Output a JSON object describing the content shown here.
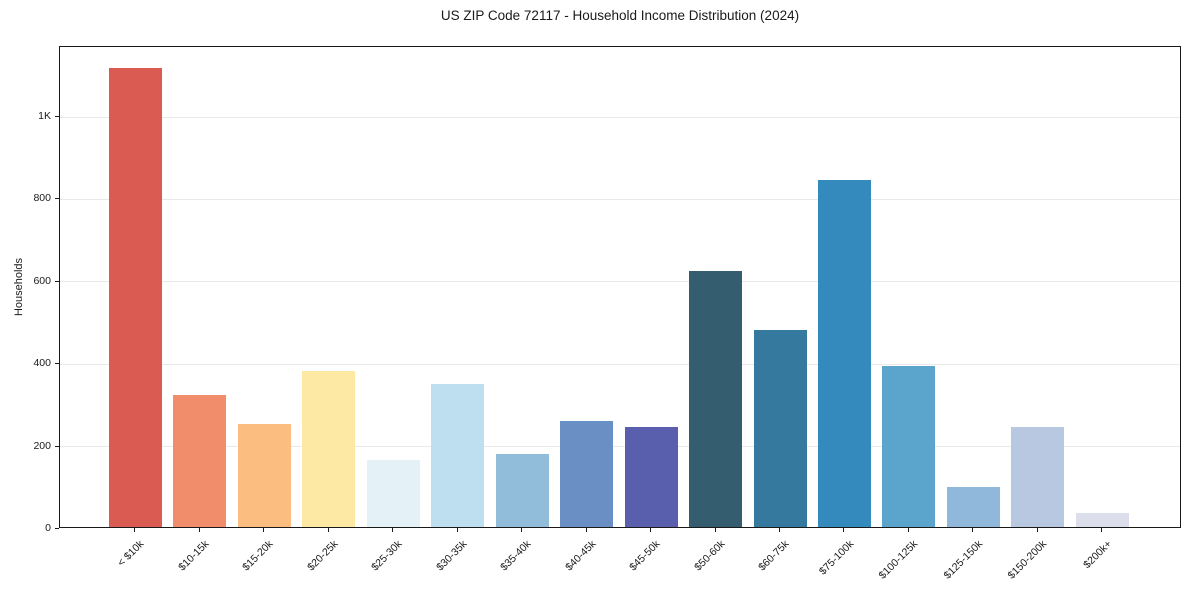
{
  "title": "US ZIP Code 72117 - Household Income Distribution (2024)",
  "chart_data": {
    "type": "bar",
    "title": "US ZIP Code 72117 - Household Income Distribution (2024)",
    "xlabel": "",
    "ylabel": "Households",
    "categories": [
      "< $10k",
      "$10-15k",
      "$15-20k",
      "$20-25k",
      "$25-30k",
      "$30-35k",
      "$35-40k",
      "$40-45k",
      "$45-50k",
      "$50-60k",
      "$60-75k",
      "$75-100k",
      "$100-125k",
      "$125-150k",
      "$150-200k",
      "$200k+"
    ],
    "values": [
      1115,
      320,
      250,
      378,
      162,
      348,
      178,
      258,
      243,
      622,
      478,
      842,
      390,
      97,
      243,
      34
    ],
    "bar_colors": [
      "#d95b52",
      "#f28d6c",
      "#fbbd80",
      "#fde9a3",
      "#e4f2f8",
      "#bddfef",
      "#91bddb",
      "#6a8fc5",
      "#5a5fad",
      "#345d70",
      "#35799f",
      "#358abd",
      "#5ba4cb",
      "#90b8da",
      "#b8c8e1",
      "#dcdeeb"
    ],
    "yticks": [
      {
        "value": 0,
        "label": "0"
      },
      {
        "value": 200,
        "label": "200"
      },
      {
        "value": 400,
        "label": "400"
      },
      {
        "value": 600,
        "label": "600"
      },
      {
        "value": 800,
        "label": "800"
      },
      {
        "value": 1000,
        "label": "1K"
      }
    ],
    "ylim": [
      0,
      1170
    ],
    "grid": "horizontal",
    "grid_color": "#e9e9e9",
    "spine_color": "#1a1a1a",
    "background": "#ffffff",
    "legend": "none"
  }
}
